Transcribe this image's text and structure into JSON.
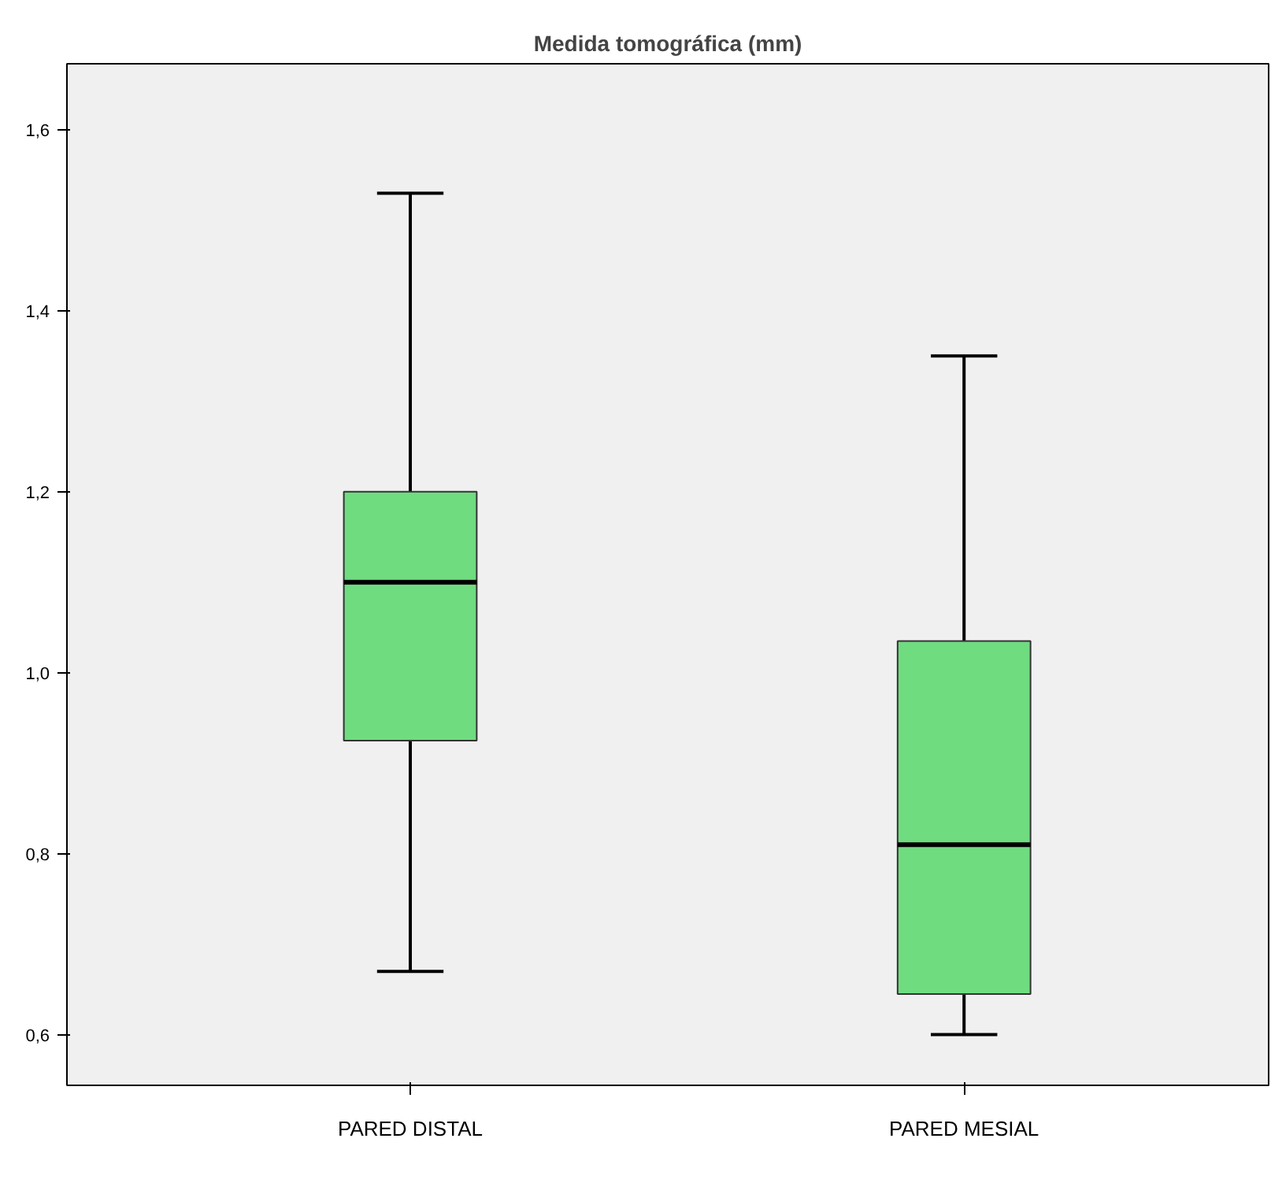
{
  "chart_data": {
    "type": "box",
    "title": "Medida tomográfica (mm)",
    "categories": [
      "PARED DISTAL",
      "PARED MESIAL"
    ],
    "boxes": [
      {
        "low": 0.67,
        "q1": 0.925,
        "median": 1.1,
        "q3": 1.2,
        "high": 1.53
      },
      {
        "low": 0.6,
        "q1": 0.645,
        "median": 0.81,
        "q3": 1.035,
        "high": 1.35
      }
    ],
    "color": "#6fdc80",
    "ylim": [
      0.544,
      1.673
    ],
    "yticks": [
      {
        "value": 0.6,
        "label": "0,6"
      },
      {
        "value": 0.8,
        "label": "0,8"
      },
      {
        "value": 1.0,
        "label": "1,0"
      },
      {
        "value": 1.2,
        "label": "1,2"
      },
      {
        "value": 1.4,
        "label": "1,4"
      },
      {
        "value": 1.6,
        "label": "1,6"
      }
    ],
    "grid": false
  }
}
